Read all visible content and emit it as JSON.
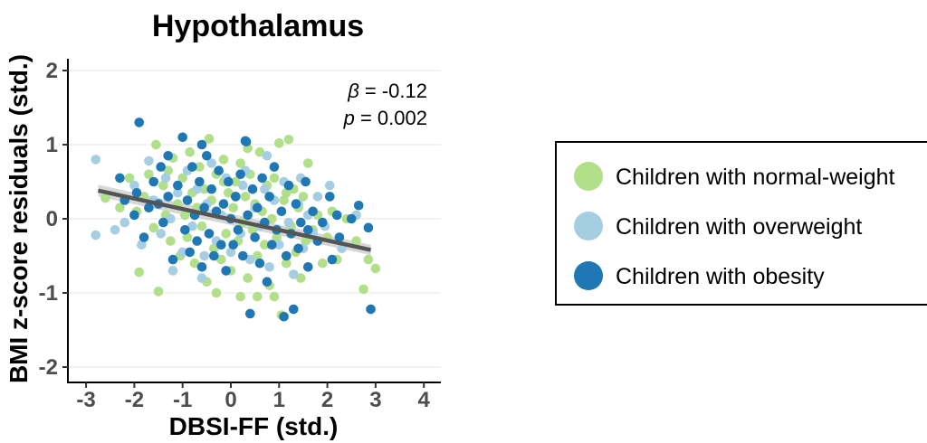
{
  "chart_data": {
    "type": "scatter",
    "title": "Hypothalamus",
    "xlabel": "DBSI-FF (std.)",
    "ylabel": "BMI z-score residuals (std.)",
    "xlim": [
      -3.3,
      4.5
    ],
    "ylim": [
      -2.2,
      2.2
    ],
    "x_ticks": [
      "-3",
      "-2",
      "-1",
      "0",
      "1",
      "2",
      "3",
      "4"
    ],
    "y_ticks": [
      "-2",
      "-1",
      "0",
      "1",
      "2"
    ],
    "grid": "horizontal",
    "annotation": {
      "beta_symbol": "β",
      "beta_text": " = -0.12",
      "p_symbol": "p",
      "p_text": " = 0.002"
    },
    "regression": {
      "x": [
        -2.75,
        2.9
      ],
      "y": [
        0.38,
        -0.42
      ],
      "ci_half_width": [
        0.08,
        0.07
      ]
    },
    "legend": {
      "position": "right",
      "entries": [
        {
          "label": "Children with normal-weight",
          "color": "#b2df8a"
        },
        {
          "label": "Children with overweight",
          "color": "#a6cee3"
        },
        {
          "label": "Children with obesity",
          "color": "#1f78b4"
        }
      ]
    },
    "series": [
      {
        "name": "Children with normal-weight",
        "color": "#b2df8a",
        "points": [
          [
            -2.6,
            0.28
          ],
          [
            -2.3,
            0.15
          ],
          [
            -2.1,
            0.55
          ],
          [
            -1.9,
            -0.72
          ],
          [
            -1.8,
            0.3
          ],
          [
            -1.7,
            0.6
          ],
          [
            -1.6,
            -0.12
          ],
          [
            -1.55,
            1.0
          ],
          [
            -1.5,
            -0.98
          ],
          [
            -1.4,
            0.45
          ],
          [
            -1.3,
            0.65
          ],
          [
            -1.25,
            -0.3
          ],
          [
            -1.2,
            0.82
          ],
          [
            -1.1,
            0.2
          ],
          [
            -1.05,
            -0.5
          ],
          [
            -1.0,
            0.55
          ],
          [
            -0.95,
            0.05
          ],
          [
            -0.9,
            -0.25
          ],
          [
            -0.85,
            0.9
          ],
          [
            -0.8,
            0.35
          ],
          [
            -0.75,
            -0.6
          ],
          [
            -0.7,
            0.15
          ],
          [
            -0.65,
            0.7
          ],
          [
            -0.6,
            -0.1
          ],
          [
            -0.55,
            0.4
          ],
          [
            -0.5,
            -0.85
          ],
          [
            -0.45,
            1.08
          ],
          [
            -0.4,
            0.25
          ],
          [
            -0.35,
            -0.4
          ],
          [
            -0.3,
            0.6
          ],
          [
            -0.25,
            0.05
          ],
          [
            -0.2,
            -0.55
          ],
          [
            -0.15,
            0.8
          ],
          [
            -0.1,
            -0.2
          ],
          [
            -0.05,
            0.35
          ],
          [
            0.0,
            -0.7
          ],
          [
            0.05,
            0.15
          ],
          [
            0.1,
            0.5
          ],
          [
            0.15,
            -0.3
          ],
          [
            0.2,
            0.75
          ],
          [
            0.25,
            -0.05
          ],
          [
            0.3,
            0.3
          ],
          [
            0.35,
            -0.8
          ],
          [
            0.4,
            0.6
          ],
          [
            0.45,
            -0.15
          ],
          [
            0.5,
            0.2
          ],
          [
            0.55,
            -0.5
          ],
          [
            0.6,
            0.9
          ],
          [
            0.65,
            0.1
          ],
          [
            0.7,
            -0.35
          ],
          [
            0.75,
            0.45
          ],
          [
            0.8,
            -0.9
          ],
          [
            0.85,
            0.0
          ],
          [
            0.9,
            0.55
          ],
          [
            0.95,
            -0.25
          ],
          [
            1.0,
            1.02
          ],
          [
            1.05,
            -1.3
          ],
          [
            1.1,
            0.25
          ],
          [
            1.15,
            -0.6
          ],
          [
            1.2,
            1.07
          ],
          [
            1.25,
            -0.1
          ],
          [
            1.3,
            0.4
          ],
          [
            1.35,
            -0.45
          ],
          [
            1.4,
            0.15
          ],
          [
            1.45,
            -0.8
          ],
          [
            1.5,
            0.3
          ],
          [
            1.55,
            -0.3
          ],
          [
            1.6,
            0.75
          ],
          [
            1.7,
            -0.15
          ],
          [
            1.8,
            0.05
          ],
          [
            1.9,
            -0.6
          ],
          [
            2.0,
            -0.25
          ],
          [
            2.1,
            0.1
          ],
          [
            2.2,
            -0.55
          ],
          [
            2.4,
            0.0
          ],
          [
            2.6,
            -0.3
          ],
          [
            2.75,
            -0.95
          ],
          [
            2.85,
            -0.55
          ],
          [
            3.0,
            -0.67
          ],
          [
            -1.95,
            0.1
          ],
          [
            -1.35,
            0.05
          ],
          [
            -0.15,
            0.5
          ],
          [
            0.35,
            0.95
          ],
          [
            1.15,
            0.35
          ],
          [
            0.55,
            -1.05
          ],
          [
            -0.3,
            -1.0
          ],
          [
            0.2,
            -1.05
          ],
          [
            0.9,
            -1.05
          ]
        ]
      },
      {
        "name": "Children with overweight",
        "color": "#a6cee3",
        "points": [
          [
            -2.8,
            0.8
          ],
          [
            -2.8,
            -0.22
          ],
          [
            -2.4,
            -0.15
          ],
          [
            -2.2,
            -0.05
          ],
          [
            -2.0,
            0.45
          ],
          [
            -1.85,
            -0.35
          ],
          [
            -1.7,
            0.78
          ],
          [
            -1.6,
            0.25
          ],
          [
            -1.45,
            -0.2
          ],
          [
            -1.35,
            0.55
          ],
          [
            -1.2,
            -0.7
          ],
          [
            -1.1,
            0.35
          ],
          [
            -1.0,
            -0.45
          ],
          [
            -0.9,
            0.65
          ],
          [
            -0.8,
            -0.1
          ],
          [
            -0.7,
            0.4
          ],
          [
            -0.6,
            -0.8
          ],
          [
            -0.5,
            0.2
          ],
          [
            -0.4,
            0.75
          ],
          [
            -0.3,
            -0.3
          ],
          [
            -0.2,
            0.05
          ],
          [
            -0.1,
            0.55
          ],
          [
            0.0,
            -0.45
          ],
          [
            0.1,
            0.3
          ],
          [
            0.2,
            -0.2
          ],
          [
            0.3,
            0.65
          ],
          [
            0.4,
            -0.55
          ],
          [
            0.5,
            0.15
          ],
          [
            0.6,
            -0.1
          ],
          [
            0.7,
            0.4
          ],
          [
            0.8,
            -0.65
          ],
          [
            0.9,
            0.25
          ],
          [
            1.0,
            -0.35
          ],
          [
            1.1,
            0.5
          ],
          [
            1.2,
            -0.05
          ],
          [
            1.3,
            -0.75
          ],
          [
            1.4,
            0.2
          ],
          [
            1.5,
            -0.4
          ],
          [
            1.6,
            0.05
          ],
          [
            1.7,
            -0.2
          ],
          [
            1.8,
            0.3
          ],
          [
            1.95,
            -0.1
          ],
          [
            2.05,
            0.45
          ],
          [
            2.3,
            -0.4
          ],
          [
            2.6,
            0.05
          ],
          [
            -1.25,
            0.0
          ],
          [
            -0.55,
            -0.5
          ],
          [
            0.25,
            0.45
          ],
          [
            0.75,
            0.85
          ],
          [
            1.45,
            0.55
          ]
        ]
      },
      {
        "name": "Children with obesity",
        "color": "#1f78b4",
        "points": [
          [
            -1.9,
            1.3
          ],
          [
            -2.3,
            0.55
          ],
          [
            -2.2,
            0.25
          ],
          [
            -2.0,
            0.05
          ],
          [
            -1.95,
            0.35
          ],
          [
            -1.8,
            -0.25
          ],
          [
            -1.7,
            0.15
          ],
          [
            -1.6,
            0.5
          ],
          [
            -1.5,
            0.2
          ],
          [
            -1.45,
            0.7
          ],
          [
            -1.4,
            -0.05
          ],
          [
            -1.3,
            0.3
          ],
          [
            -1.2,
            -0.55
          ],
          [
            -1.1,
            0.45
          ],
          [
            -1.0,
            1.1
          ],
          [
            -0.95,
            -0.15
          ],
          [
            -0.9,
            0.25
          ],
          [
            -0.85,
            -0.45
          ],
          [
            -0.8,
            0.7
          ],
          [
            -0.75,
            0.05
          ],
          [
            -0.7,
            -0.3
          ],
          [
            -0.65,
            0.5
          ],
          [
            -0.6,
            -0.65
          ],
          [
            -0.55,
            0.15
          ],
          [
            -0.5,
            0.85
          ],
          [
            -0.45,
            -0.2
          ],
          [
            -0.4,
            0.4
          ],
          [
            -0.35,
            -0.5
          ],
          [
            -0.3,
            0.1
          ],
          [
            -0.25,
            0.65
          ],
          [
            -0.2,
            -0.35
          ],
          [
            -0.15,
            0.2
          ],
          [
            -0.1,
            -0.7
          ],
          [
            -0.05,
            0.5
          ],
          [
            0.0,
            0.0
          ],
          [
            0.05,
            -0.35
          ],
          [
            0.1,
            0.3
          ],
          [
            0.15,
            -0.15
          ],
          [
            0.2,
            0.6
          ],
          [
            0.25,
            -0.5
          ],
          [
            0.3,
            1.05
          ],
          [
            0.35,
            0.05
          ],
          [
            0.4,
            -1.28
          ],
          [
            0.45,
            0.4
          ],
          [
            0.5,
            -0.25
          ],
          [
            0.55,
            0.15
          ],
          [
            0.6,
            -0.6
          ],
          [
            0.65,
            0.55
          ],
          [
            0.7,
            -0.05
          ],
          [
            0.75,
            -0.85
          ],
          [
            0.8,
            0.3
          ],
          [
            0.85,
            -0.35
          ],
          [
            0.9,
            0.7
          ],
          [
            0.95,
            -0.15
          ],
          [
            1.05,
            0.1
          ],
          [
            1.1,
            -1.32
          ],
          [
            1.15,
            -0.5
          ],
          [
            1.2,
            0.45
          ],
          [
            1.25,
            -0.2
          ],
          [
            1.3,
            -1.22
          ],
          [
            1.35,
            0.2
          ],
          [
            1.4,
            -0.4
          ],
          [
            1.45,
            -0.05
          ],
          [
            1.55,
            0.5
          ],
          [
            1.6,
            -0.65
          ],
          [
            1.7,
            0.1
          ],
          [
            1.8,
            -0.3
          ],
          [
            1.9,
            -0.05
          ],
          [
            2.05,
            0.3
          ],
          [
            2.1,
            -0.55
          ],
          [
            2.2,
            0.05
          ],
          [
            2.25,
            -0.25
          ],
          [
            2.5,
            0.0
          ],
          [
            2.65,
            0.18
          ],
          [
            2.85,
            -0.12
          ],
          [
            2.9,
            -1.22
          ],
          [
            -1.3,
            0.85
          ],
          [
            0.32,
            1.04
          ],
          [
            -0.6,
            1.0
          ],
          [
            1.6,
            -0.15
          ]
        ]
      }
    ]
  }
}
